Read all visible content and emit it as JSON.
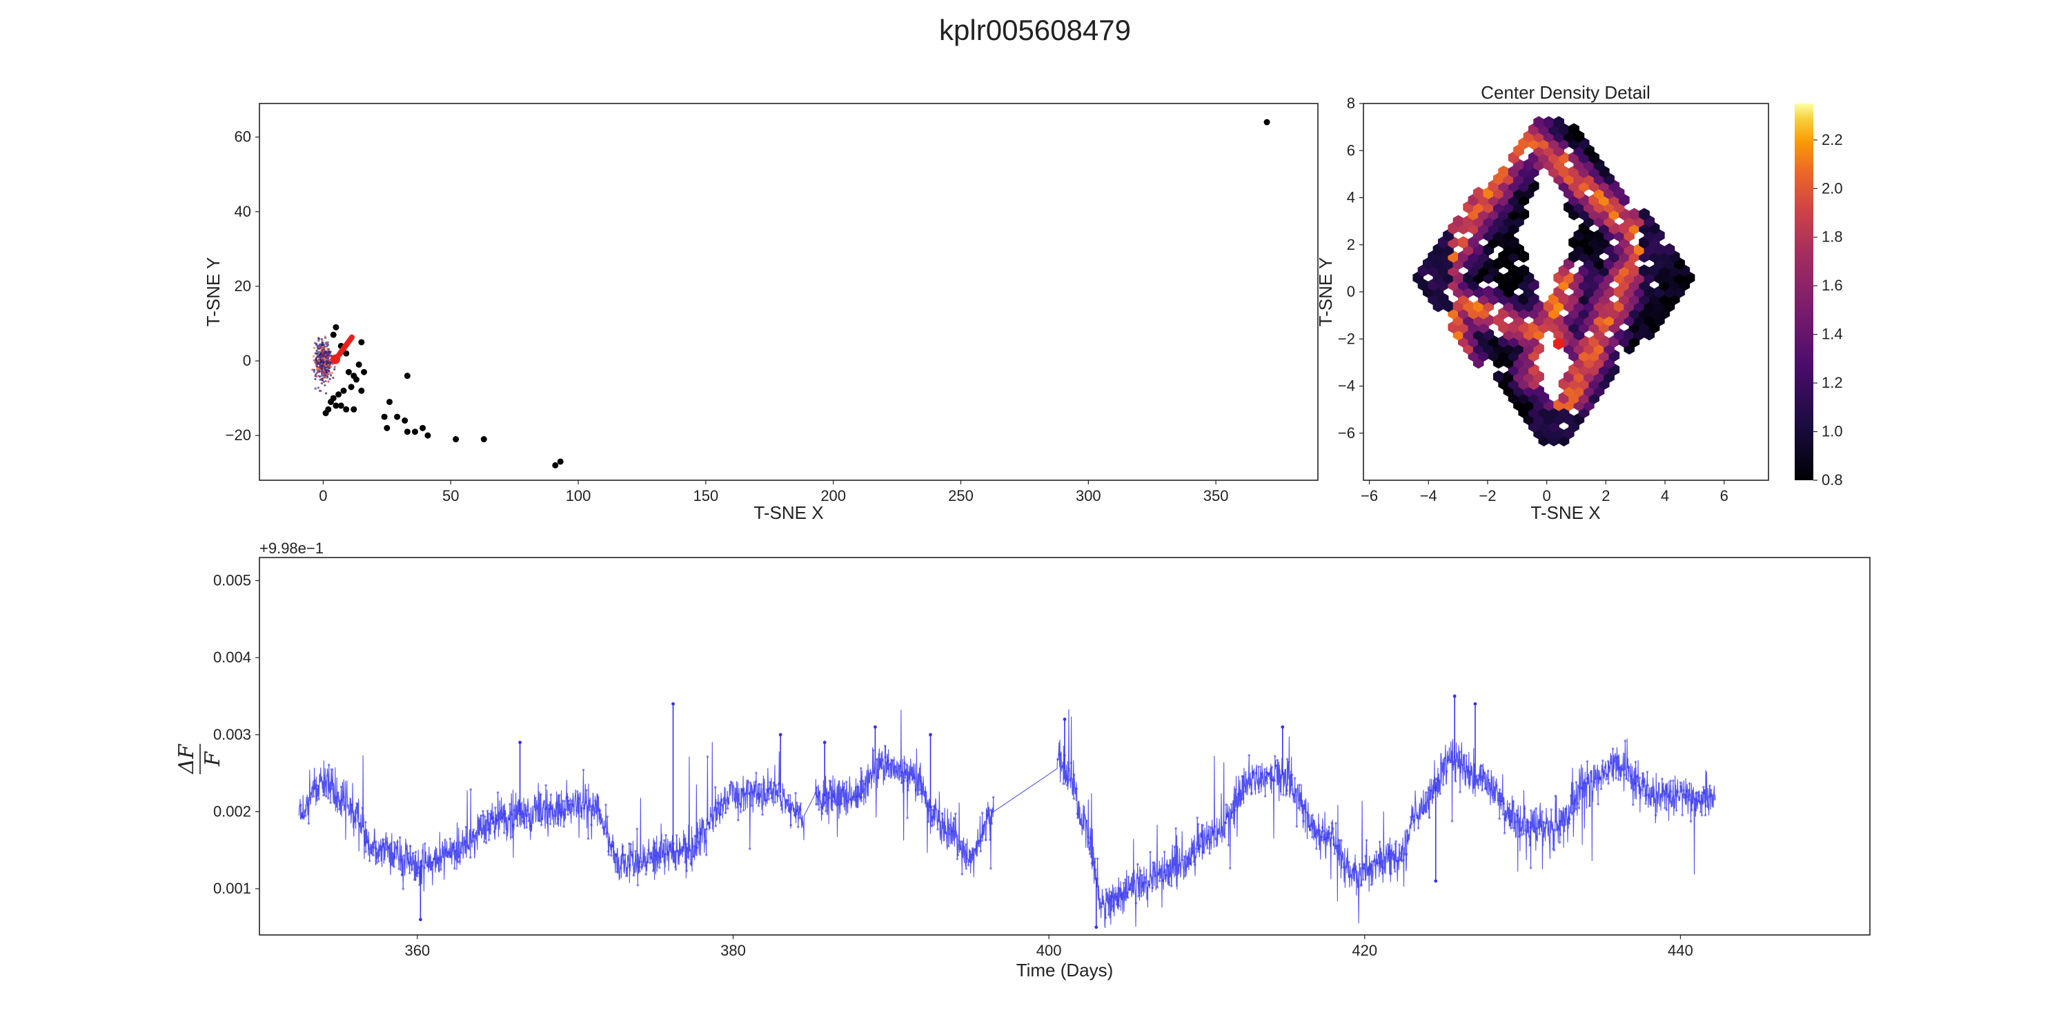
{
  "figure": {
    "title": "kplr005608479"
  },
  "colors": {
    "points": "#000000",
    "highlight": "#e8201b",
    "lightcurve": "#3333ee",
    "colormap": "inferno"
  },
  "chart_data": [
    {
      "type": "scatter",
      "name": "tsne-overview",
      "title": "",
      "xlabel": "T-SNE X",
      "ylabel": "T-SNE Y",
      "xlim": [
        -25,
        390
      ],
      "ylim": [
        -32,
        69
      ],
      "xticks": [
        0,
        50,
        100,
        150,
        200,
        250,
        300,
        350
      ],
      "yticks": [
        -20,
        0,
        20,
        40,
        60
      ],
      "xticklabels": [
        "0",
        "50",
        "100",
        "150",
        "200",
        "250",
        "300",
        "350"
      ],
      "yticklabels": [
        "−20",
        "0",
        "20",
        "40",
        "60"
      ],
      "grid": false,
      "outliers": [
        [
          4,
          7
        ],
        [
          5,
          9
        ],
        [
          7,
          4
        ],
        [
          9,
          2
        ],
        [
          10,
          -3
        ],
        [
          12,
          -4
        ],
        [
          14,
          -1
        ],
        [
          15,
          5
        ],
        [
          16,
          -3
        ],
        [
          13,
          -5
        ],
        [
          15,
          -8
        ],
        [
          11,
          -7
        ],
        [
          8,
          -8
        ],
        [
          6,
          -9
        ],
        [
          4,
          -10
        ],
        [
          3,
          -11
        ],
        [
          5,
          -12
        ],
        [
          7,
          -12
        ],
        [
          9,
          -13
        ],
        [
          12,
          -13
        ],
        [
          2,
          -13
        ],
        [
          1,
          -14
        ],
        [
          33,
          -4
        ],
        [
          26,
          -11
        ],
        [
          24,
          -15
        ],
        [
          29,
          -15
        ],
        [
          32,
          -16
        ],
        [
          25,
          -18
        ],
        [
          33,
          -19
        ],
        [
          36,
          -19
        ],
        [
          39,
          -18
        ],
        [
          41,
          -20
        ],
        [
          52,
          -21
        ],
        [
          63,
          -21
        ],
        [
          91,
          -28
        ],
        [
          93,
          -27
        ],
        [
          370,
          64
        ]
      ],
      "cluster_center": [
        0,
        0
      ],
      "highlight_point": [
        8,
        3
      ]
    },
    {
      "type": "heatmap",
      "name": "center-density",
      "title": "Center Density Detail",
      "xlabel": "T-SNE X",
      "ylabel": "T-SNE Y",
      "xlim": [
        -6.2,
        7.5
      ],
      "ylim": [
        -8,
        8
      ],
      "xticks": [
        -6,
        -4,
        -2,
        0,
        2,
        4,
        6
      ],
      "yticks": [
        -6,
        -4,
        -2,
        0,
        2,
        4,
        6,
        8
      ],
      "xticklabels": [
        "−6",
        "−4",
        "−2",
        "0",
        "2",
        "4",
        "6"
      ],
      "yticklabels": [
        "−6",
        "−4",
        "−2",
        "0",
        "2",
        "4",
        "6",
        "8"
      ],
      "colorbar": {
        "min": 0.8,
        "max": 2.35,
        "ticks": [
          0.8,
          1.0,
          1.2,
          1.4,
          1.6,
          1.8,
          2.0,
          2.2
        ],
        "ticklabels": [
          "0.8",
          "1.0",
          "1.2",
          "1.4",
          "1.6",
          "1.8",
          "2.0",
          "2.2"
        ]
      },
      "highlight_point": [
        0.4,
        -2.2
      ]
    },
    {
      "type": "line",
      "name": "light-curve",
      "title": "",
      "xlabel": "Time (Days)",
      "ylabel": "ΔF / F",
      "offset_label": "+9.98e−1",
      "xlim": [
        350,
        452
      ],
      "ylim": [
        0.0004,
        0.0053
      ],
      "xticks": [
        360,
        380,
        400,
        420,
        440
      ],
      "yticks": [
        0.001,
        0.002,
        0.003,
        0.004,
        0.005
      ],
      "xticklabels": [
        "360",
        "380",
        "400",
        "420",
        "440"
      ],
      "yticklabels": [
        "0.001",
        "0.002",
        "0.003",
        "0.004",
        "0.005"
      ],
      "t_range": [
        352.5,
        442.2
      ],
      "gaps": [
        [
          384.5,
          385.2
        ],
        [
          396.5,
          400.5
        ]
      ],
      "anchors": [
        [
          352.5,
          0.002
        ],
        [
          354.0,
          0.0024
        ],
        [
          355.5,
          0.0021
        ],
        [
          357.5,
          0.0015
        ],
        [
          360.0,
          0.0013
        ],
        [
          362.5,
          0.0015
        ],
        [
          365.0,
          0.0019
        ],
        [
          368.0,
          0.002
        ],
        [
          371.0,
          0.0021
        ],
        [
          373.0,
          0.0013
        ],
        [
          375.0,
          0.0014
        ],
        [
          377.0,
          0.0015
        ],
        [
          380.0,
          0.0022
        ],
        [
          382.5,
          0.0023
        ],
        [
          384.5,
          0.0019
        ],
        [
          385.2,
          0.0022
        ],
        [
          387.5,
          0.0022
        ],
        [
          389.5,
          0.0026
        ],
        [
          391.0,
          0.0025
        ],
        [
          393.5,
          0.0018
        ],
        [
          395.0,
          0.0014
        ],
        [
          396.5,
          0.002
        ],
        [
          400.5,
          0.0027
        ],
        [
          401.5,
          0.0024
        ],
        [
          402.2,
          0.0018
        ],
        [
          403.5,
          0.0008
        ],
        [
          406.0,
          0.0011
        ],
        [
          408.0,
          0.0013
        ],
        [
          410.5,
          0.0017
        ],
        [
          413.0,
          0.0024
        ],
        [
          414.5,
          0.0025
        ],
        [
          417.5,
          0.0017
        ],
        [
          419.5,
          0.0012
        ],
        [
          422.0,
          0.0014
        ],
        [
          423.5,
          0.002
        ],
        [
          425.5,
          0.0027
        ],
        [
          427.5,
          0.0024
        ],
        [
          430.0,
          0.0018
        ],
        [
          432.0,
          0.0018
        ],
        [
          434.5,
          0.0024
        ],
        [
          436.0,
          0.0026
        ],
        [
          438.5,
          0.0022
        ],
        [
          442.2,
          0.0022
        ]
      ],
      "spikes": [
        [
          376.2,
          0.0034
        ],
        [
          360.2,
          0.0006
        ],
        [
          366.5,
          0.0029
        ],
        [
          383.0,
          0.003
        ],
        [
          385.8,
          0.0029
        ],
        [
          392.5,
          0.003
        ],
        [
          389.0,
          0.0031
        ],
        [
          401.0,
          0.0032
        ],
        [
          425.7,
          0.0035
        ],
        [
          427.0,
          0.0034
        ],
        [
          424.5,
          0.0011
        ],
        [
          414.8,
          0.0031
        ],
        [
          403.0,
          0.0005
        ]
      ]
    }
  ]
}
